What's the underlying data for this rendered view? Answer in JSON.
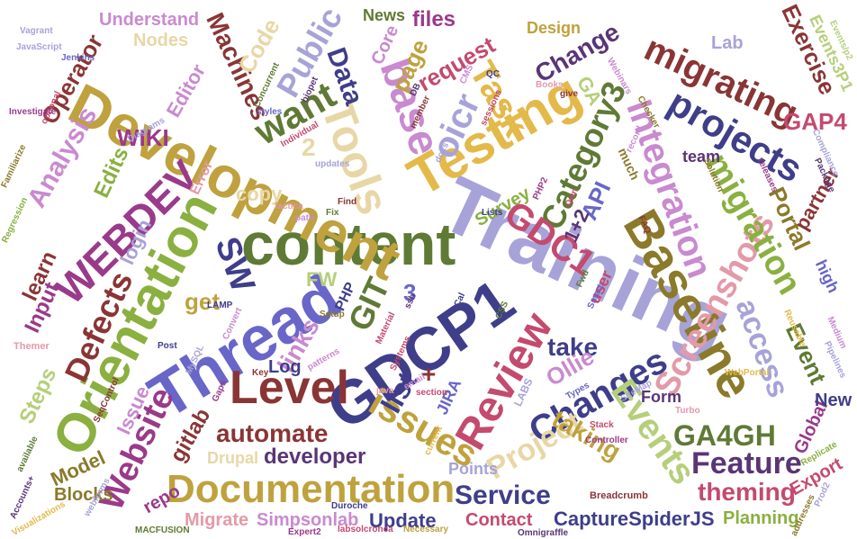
{
  "words": [
    {
      "text": "Training",
      "color": "#a7a3d8"
    },
    {
      "text": "content",
      "color": "#5f7a35"
    },
    {
      "text": "Development",
      "color": "#bfa23e"
    },
    {
      "text": "Orientation",
      "color": "#8ab040"
    },
    {
      "text": "GDCP1",
      "color": "#3e3e8a"
    },
    {
      "text": "Thread",
      "color": "#6866c8"
    },
    {
      "text": "Testing",
      "color": "#e3b94a"
    },
    {
      "text": "Baseline",
      "color": "#8a7a2a"
    },
    {
      "text": "Documentation",
      "color": "#bfa23e"
    },
    {
      "text": "Level",
      "color": "#8a3535"
    },
    {
      "text": "Review",
      "color": "#c44a6e"
    },
    {
      "text": "Tools",
      "color": "#e8d7a6"
    },
    {
      "text": "Integration",
      "color": "#c98ad0"
    },
    {
      "text": "Screenshots",
      "color": "#e39aa8"
    },
    {
      "text": "Changes",
      "color": "#3e3e8a"
    },
    {
      "text": "WEBDEV",
      "color": "#9a3a8a"
    },
    {
      "text": "projects",
      "color": "#3e3e8a"
    },
    {
      "text": "migrating",
      "color": "#8a3535"
    },
    {
      "text": "migration",
      "color": "#8ab040"
    },
    {
      "text": "Category3",
      "color": "#5f7a35"
    },
    {
      "text": "GDC1",
      "color": "#c44a6e"
    },
    {
      "text": "issues",
      "color": "#bfa23e"
    },
    {
      "text": "Website",
      "color": "#9a3a8a"
    },
    {
      "text": "Defects",
      "color": "#8a3535"
    },
    {
      "text": "Events",
      "color": "#b5cf7a"
    },
    {
      "text": "Feature",
      "color": "#5a3575"
    },
    {
      "text": "Project",
      "color": "#e8d7a6"
    },
    {
      "text": "base",
      "color": "#c98ad0"
    },
    {
      "text": "want",
      "color": "#5f7a35"
    },
    {
      "text": "Task",
      "color": "#e3b94a"
    },
    {
      "text": "oicr",
      "color": "#a7a3d8"
    },
    {
      "text": "Public",
      "color": "#a7a3d8"
    },
    {
      "text": "Data",
      "color": "#3e3e8a"
    },
    {
      "text": "access",
      "color": "#a7a3d8"
    },
    {
      "text": "automate",
      "color": "#8a3535"
    },
    {
      "text": "developer",
      "color": "#5a3575"
    },
    {
      "text": "GA4GH",
      "color": "#5f7a35"
    },
    {
      "text": "Service",
      "color": "#3e3e8a"
    },
    {
      "text": "theming",
      "color": "#c44a6e"
    },
    {
      "text": "CaptureSpiderJS",
      "color": "#3e3e8a"
    },
    {
      "text": "Analysis",
      "color": "#c98ad0"
    },
    {
      "text": "Change",
      "color": "#5a3575"
    },
    {
      "text": "Machines",
      "color": "#8a3535"
    },
    {
      "text": "links",
      "color": "#c98ad0"
    },
    {
      "text": "list",
      "color": "#3e3e8a"
    },
    {
      "text": "take",
      "color": "#3e3e8a"
    },
    {
      "text": "Ollie",
      "color": "#c98ad0"
    },
    {
      "text": "taking",
      "color": "#bfa23e"
    },
    {
      "text": "Exercise",
      "color": "#8a3535"
    },
    {
      "text": "GAP4",
      "color": "#c44a6e"
    },
    {
      "text": "Event",
      "color": "#5f7a35"
    },
    {
      "text": "Portal",
      "color": "#8a7a2a"
    },
    {
      "text": "partner",
      "color": "#8a3535"
    },
    {
      "text": "API",
      "color": "#6866c8"
    },
    {
      "text": "Steps",
      "color": "#b5cf7a"
    },
    {
      "text": "Input",
      "color": "#9a3a8a"
    },
    {
      "text": "learn",
      "color": "#8a3535"
    },
    {
      "text": "get",
      "color": "#bfa23e"
    },
    {
      "text": "SW",
      "color": "#3e3e8a"
    },
    {
      "text": "GIT",
      "color": "#5f7a35"
    },
    {
      "text": "Edits",
      "color": "#8ab040"
    },
    {
      "text": "WIKI",
      "color": "#9a3a8a"
    },
    {
      "text": "copy",
      "color": "#e8d7a6"
    },
    {
      "text": "login",
      "color": "#a7a3d8"
    },
    {
      "text": "Operator",
      "color": "#8a3535"
    },
    {
      "text": "Editor",
      "color": "#c98ad0"
    },
    {
      "text": "Nodes",
      "color": "#e8d7a6"
    },
    {
      "text": "Code",
      "color": "#e8d7a6"
    },
    {
      "text": "Understand",
      "color": "#c98ad0"
    },
    {
      "text": "News",
      "color": "#5f7a35"
    },
    {
      "text": "files",
      "color": "#9a3a8a"
    },
    {
      "text": "request",
      "color": "#c44a6e"
    },
    {
      "text": "Design",
      "color": "#bfa23e"
    },
    {
      "text": "page",
      "color": "#bfa23e"
    },
    {
      "text": "Core",
      "color": "#c98ad0"
    },
    {
      "text": "Lab",
      "color": "#a7a3d8"
    },
    {
      "text": "Events3P1",
      "color": "#b5cf7a"
    },
    {
      "text": "team",
      "color": "#5a3575"
    },
    {
      "text": "Survey",
      "color": "#8ab040"
    },
    {
      "text": "1+2",
      "color": "#5a3575"
    },
    {
      "text": "Model",
      "color": "#8a7a2a"
    },
    {
      "text": "gitlab",
      "color": "#8a3535"
    },
    {
      "text": "Issue",
      "color": "#c98ad0"
    },
    {
      "text": "Log",
      "color": "#3e3e8a"
    },
    {
      "text": "Drupal",
      "color": "#e8d7a6"
    },
    {
      "text": "Blocks",
      "color": "#8a7a2a"
    },
    {
      "text": "repo",
      "color": "#9a3a8a"
    },
    {
      "text": "Migrate",
      "color": "#e39aa8"
    },
    {
      "text": "Simpsonlab",
      "color": "#c98ad0"
    },
    {
      "text": "Update",
      "color": "#3e3e8a"
    },
    {
      "text": "Contact",
      "color": "#c44a6e"
    },
    {
      "text": "Points",
      "color": "#a7a3d8"
    },
    {
      "text": "Planning",
      "color": "#8ab040"
    },
    {
      "text": "Form",
      "color": "#5a3575"
    },
    {
      "text": "Export",
      "color": "#c44a6e"
    },
    {
      "text": "Global",
      "color": "#9a3a8a"
    },
    {
      "text": "New",
      "color": "#3e3e8a"
    },
    {
      "text": "high",
      "color": "#6866c8"
    },
    {
      "text": "FW",
      "color": "#b5cf7a"
    },
    {
      "text": "JIRA",
      "color": "#6866c8"
    },
    {
      "text": "3",
      "color": "#6866c8"
    },
    {
      "text": "2",
      "color": "#e8d7a6"
    },
    {
      "text": "+",
      "color": "#8a3535"
    },
    {
      "text": "user",
      "color": "#c44a6e"
    },
    {
      "text": "GA",
      "color": "#b5cf7a"
    },
    {
      "text": "Error",
      "color": "#e39aa8"
    },
    {
      "text": "PHP",
      "color": "#3e3e8a"
    },
    {
      "text": "Jenkins",
      "color": "#6866c8"
    },
    {
      "text": "Vagrant",
      "color": "#a7a3d8"
    },
    {
      "text": "JavaScript",
      "color": "#a7a3d8"
    },
    {
      "text": "optional",
      "color": "#c44a6e"
    },
    {
      "text": "Investigate",
      "color": "#9a3a8a"
    },
    {
      "text": "Familiarize",
      "color": "#8a7a2a"
    },
    {
      "text": "Regression",
      "color": "#8ab040"
    },
    {
      "text": "Themer",
      "color": "#e39aa8"
    },
    {
      "text": "webforms",
      "color": "#a7a3d8"
    },
    {
      "text": "Visualizations",
      "color": "#e3b94a"
    },
    {
      "text": "MACFUSION",
      "color": "#5f7a35"
    },
    {
      "text": "Expert2",
      "color": "#9a3a8a"
    },
    {
      "text": "labsolcronca",
      "color": "#c44a6e"
    },
    {
      "text": "Necessary",
      "color": "#bfa23e"
    },
    {
      "text": "Omnigraffle",
      "color": "#5a3575"
    },
    {
      "text": "Breadcrumb",
      "color": "#8a3535"
    },
    {
      "text": "Duroche",
      "color": "#3e3e8a"
    },
    {
      "text": "addresses",
      "color": "#8a7a2a"
    },
    {
      "text": "Replicate",
      "color": "#8ab040"
    },
    {
      "text": "Prod2",
      "color": "#a7a3d8"
    },
    {
      "text": "Compliance",
      "color": "#a7a3d8"
    },
    {
      "text": "Medium",
      "color": "#c98ad0"
    },
    {
      "text": "Events/p2",
      "color": "#b5cf7a"
    },
    {
      "text": "releases",
      "color": "#9a3a8a"
    },
    {
      "text": "Package",
      "color": "#5a3575"
    },
    {
      "text": "Webinars",
      "color": "#c98ad0"
    },
    {
      "text": "Checker",
      "color": "#8a7a2a"
    },
    {
      "text": "Concurrent",
      "color": "#5f7a35"
    },
    {
      "text": "biopet",
      "color": "#5a3575"
    },
    {
      "text": "styles",
      "color": "#6866c8"
    },
    {
      "text": "Individual",
      "color": "#c44a6e"
    },
    {
      "text": "updates",
      "color": "#a7a3d8"
    },
    {
      "text": "FAQ",
      "color": "#8a3535"
    },
    {
      "text": "Fwd",
      "color": "#5f7a35"
    },
    {
      "text": "Smart",
      "color": "#6866c8"
    },
    {
      "text": "Material",
      "color": "#c44a6e"
    },
    {
      "text": "LAMP",
      "color": "#3e3e8a"
    },
    {
      "text": "Convert",
      "color": "#c98ad0"
    },
    {
      "text": "Setup",
      "color": "#8a7a2a"
    },
    {
      "text": "Post",
      "color": "#3e3e8a"
    },
    {
      "text": "MySQL",
      "color": "#a7a3d8"
    },
    {
      "text": "Key",
      "color": "#8a3535"
    },
    {
      "text": "Gaps",
      "color": "#9a3a8a"
    },
    {
      "text": "SiteMap",
      "color": "#a7a3d8"
    },
    {
      "text": "Types",
      "color": "#6866c8"
    },
    {
      "text": "Stack",
      "color": "#c44a6e"
    },
    {
      "text": "Controller",
      "color": "#9a3a8a"
    },
    {
      "text": "Turbo",
      "color": "#e39aa8"
    },
    {
      "text": "LABS",
      "color": "#a7a3d8"
    },
    {
      "text": "section",
      "color": "#c44a6e"
    },
    {
      "text": "email",
      "color": "#c98ad0"
    },
    {
      "text": "current",
      "color": "#e3b94a"
    },
    {
      "text": "available",
      "color": "#5f7a35"
    },
    {
      "text": "Accounts+",
      "color": "#5a3575"
    },
    {
      "text": "SeqControl",
      "color": "#8a3535"
    },
    {
      "text": "patterns",
      "color": "#c98ad0"
    },
    {
      "text": "Systems",
      "color": "#c44a6e"
    },
    {
      "text": "GCal",
      "color": "#3e3e8a"
    },
    {
      "text": "CSS",
      "color": "#5f7a35"
    },
    {
      "text": "Lists",
      "color": "#3e3e8a"
    },
    {
      "text": "factica",
      "color": "#e39aa8"
    },
    {
      "text": "path",
      "color": "#c98ad0"
    },
    {
      "text": "Find",
      "color": "#8a3535"
    },
    {
      "text": "Fix",
      "color": "#5f7a35"
    },
    {
      "text": "docs",
      "color": "#a7a3d8"
    },
    {
      "text": "PHP2",
      "color": "#9a3a8a"
    },
    {
      "text": "much",
      "color": "#8a7a2a"
    },
    {
      "text": "record",
      "color": "#c98ad0"
    },
    {
      "text": "give",
      "color": "#8a3535"
    },
    {
      "text": "Books",
      "color": "#e39aa8"
    },
    {
      "text": "sessions",
      "color": "#c44a6e"
    },
    {
      "text": "CMS",
      "color": "#c98ad0"
    },
    {
      "text": "QC",
      "color": "#3e3e8a"
    },
    {
      "text": "DB",
      "color": "#5a3575"
    },
    {
      "text": "member",
      "color": "#8a3535"
    },
    {
      "text": "ssh",
      "color": "#5a3575"
    },
    {
      "text": "java",
      "color": "#e39aa8"
    },
    {
      "text": "WebPortal",
      "color": "#e3b94a"
    },
    {
      "text": "Diagrams",
      "color": "#a7a3d8"
    },
    {
      "text": "Own",
      "color": "#c44a6e"
    },
    {
      "text": "Reusable",
      "color": "#e3b94a"
    },
    {
      "text": "Pipelines",
      "color": "#a7a3d8"
    },
    {
      "text": "Solution",
      "color": "#8a7a2a"
    }
  ]
}
